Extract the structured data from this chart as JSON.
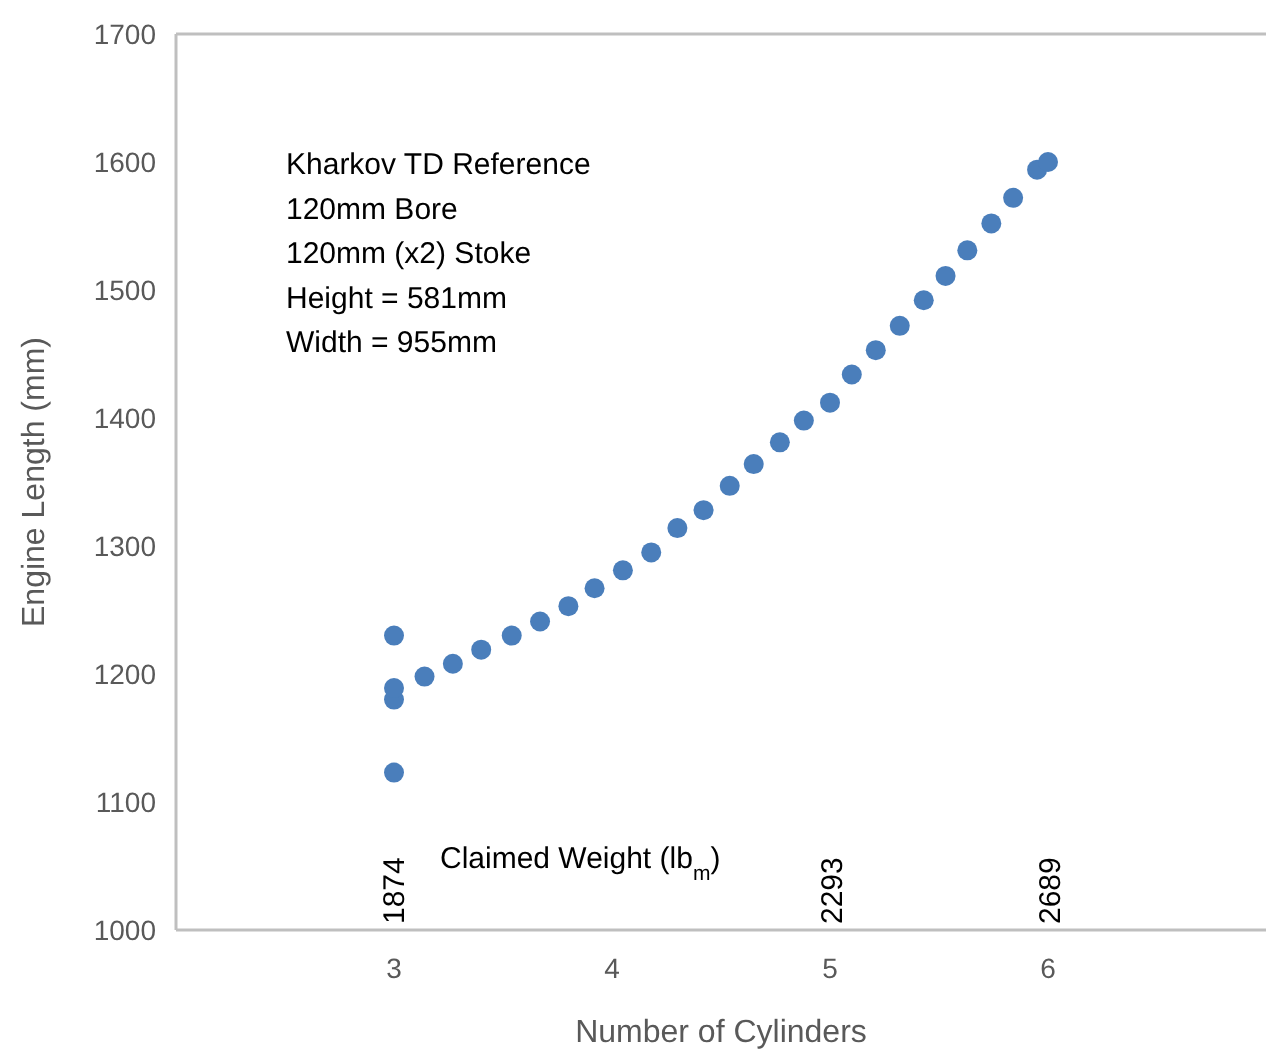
{
  "chart_data": {
    "type": "scatter",
    "xlabel": "Number of Cylinders",
    "ylabel": "Engine Length (mm)",
    "xlim": [
      2,
      7
    ],
    "xticks": [
      3,
      4,
      5,
      6
    ],
    "ylim": [
      1000,
      1700
    ],
    "yticks": [
      1000,
      1100,
      1200,
      1300,
      1400,
      1500,
      1600,
      1700
    ],
    "grid": false,
    "marker": "circle",
    "series": [
      {
        "color": "#4a7ebb",
        "x": [
          3,
          3,
          3,
          3,
          3.14,
          3.27,
          3.4,
          3.54,
          3.67,
          3.8,
          3.92,
          4.05,
          4.18,
          4.3,
          4.42,
          4.54,
          4.65,
          4.77,
          4.88,
          5,
          5.1,
          5.21,
          5.32,
          5.43,
          5.53,
          5.63,
          5.74,
          5.84,
          5.95,
          6
        ],
        "values": [
          1123,
          1180,
          1189,
          1230,
          1198,
          1208,
          1219,
          1230,
          1241,
          1253,
          1267,
          1281,
          1295,
          1314,
          1328,
          1347,
          1364,
          1381,
          1398,
          1412,
          1434,
          1453,
          1472,
          1492,
          1511,
          1531,
          1552,
          1572,
          1594,
          1600
        ]
      }
    ],
    "annotations": [
      "Kharkov TD Reference",
      "120mm Bore",
      "120mm (x2) Stoke",
      "Height = 581mm",
      "Width = 955mm",
      "Claimed Weight (lb$_{m}$)",
      "1874",
      "2293",
      "2689"
    ]
  }
}
